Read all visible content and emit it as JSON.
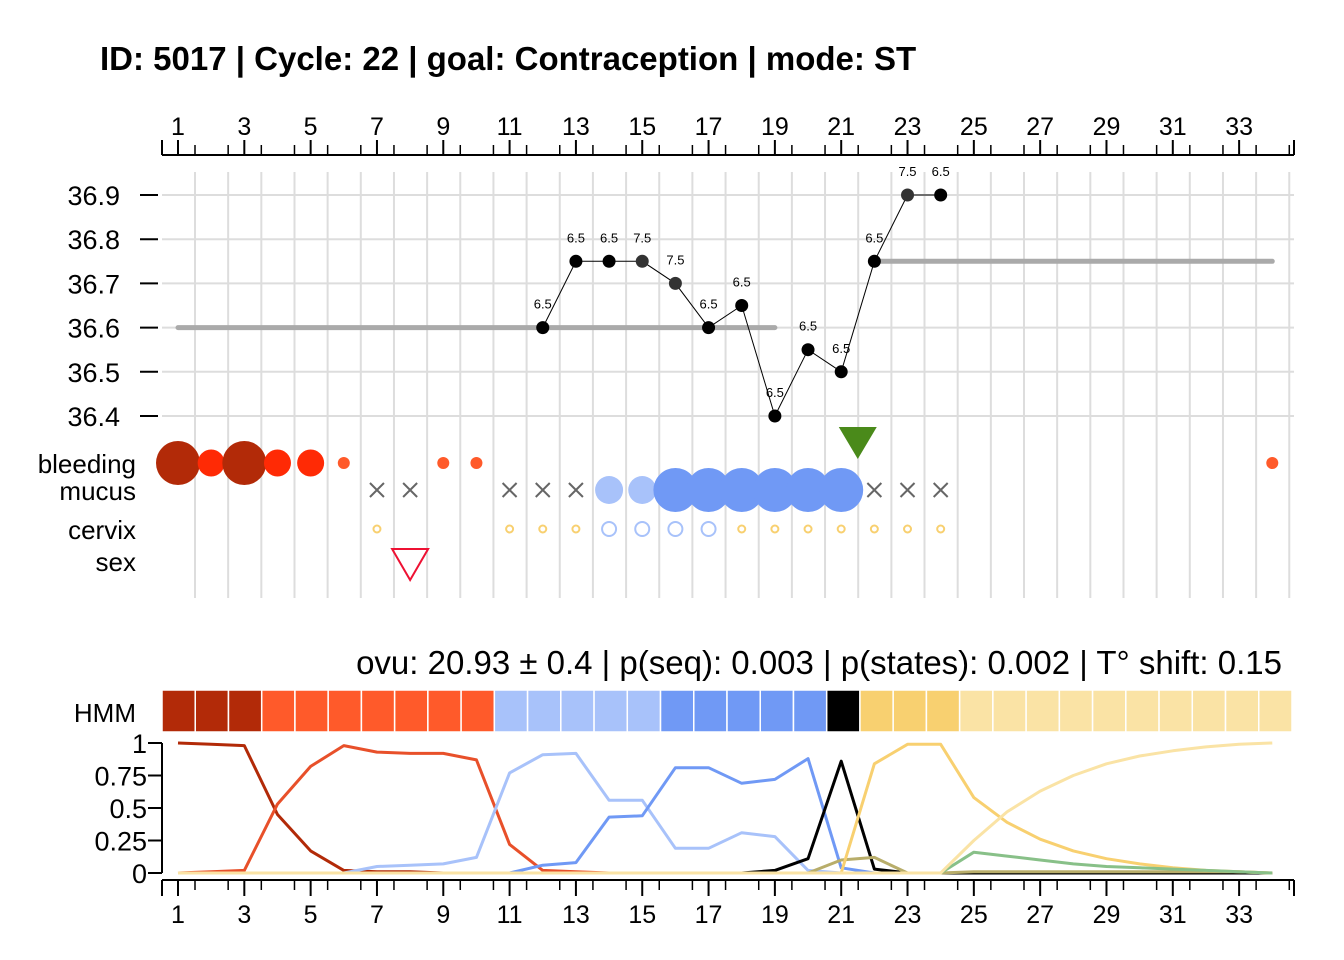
{
  "title": "ID: 5017 | Cycle: 22 | goal: Contraception  |  mode: ST",
  "stats_line": "ovu:  20.93  ±  0.4  | p(seq):  0.003  | p(states):  0.002  | T° shift:  0.15",
  "row_labels": {
    "bleeding": "bleeding",
    "mucus": "mucus",
    "cervix": "cervix",
    "sex": "sex",
    "hmm": "HMM"
  },
  "colors": {
    "bleeding_dark": "#B22A08",
    "bleeding_mid": "#FF2A05",
    "bleeding_light": "#FF5A2A",
    "mucus_light": "#A8C2FA",
    "mucus_dark": "#7099F5",
    "cervix_yellow": "#F8D070",
    "sex_red": "#EE1133",
    "ovulation_green": "#4A8A1A",
    "temp_line": "#000000",
    "reference_line": "#AAAAAA",
    "grid": "#DDDDDD"
  },
  "chart_data": [
    {
      "type": "line",
      "name": "temperature",
      "x_ticks": [
        "1",
        "3",
        "5",
        "7",
        "9",
        "11",
        "13",
        "15",
        "17",
        "19",
        "21",
        "23",
        "25",
        "27",
        "29",
        "31",
        "33"
      ],
      "y_ticks": [
        "36.4",
        "36.5",
        "36.6",
        "36.7",
        "36.8",
        "36.9"
      ],
      "xlim": [
        1,
        34
      ],
      "ylim": [
        36.4,
        36.9
      ],
      "x": [
        12,
        13,
        14,
        15,
        16,
        17,
        18,
        19,
        20,
        21,
        22,
        23,
        24
      ],
      "values": [
        36.6,
        36.75,
        36.75,
        36.75,
        36.7,
        36.6,
        36.65,
        36.4,
        36.55,
        36.5,
        36.75,
        36.9,
        36.9
      ],
      "labels": [
        "6.5",
        "6.5",
        "6.5",
        "7.5",
        "7.5",
        "6.5",
        "6.5",
        "6.5",
        "6.5",
        "6.5",
        "6.5",
        "7.5",
        "6.5"
      ],
      "reference_lines": [
        {
          "x_start": 1,
          "x_end": 19,
          "y": 36.6
        },
        {
          "x_start": 22,
          "x_end": 34,
          "y": 36.75
        }
      ]
    },
    {
      "type": "scatter",
      "name": "observations",
      "bleeding": [
        {
          "day": 1,
          "level": 3,
          "color": "#B22A08"
        },
        {
          "day": 2,
          "level": 2,
          "color": "#FF2A05"
        },
        {
          "day": 3,
          "level": 3,
          "color": "#B22A08"
        },
        {
          "day": 4,
          "level": 2,
          "color": "#FF2A05"
        },
        {
          "day": 5,
          "level": 2,
          "color": "#FF2A05"
        },
        {
          "day": 6,
          "level": 1,
          "color": "#FF5A2A"
        },
        {
          "day": 9,
          "level": 1,
          "color": "#FF5A2A"
        },
        {
          "day": 10,
          "level": 1,
          "color": "#FF5A2A"
        },
        {
          "day": 34,
          "level": 1,
          "color": "#FF5A2A"
        }
      ],
      "mucus_none": [
        7,
        8,
        11,
        12,
        13,
        22,
        23,
        24
      ],
      "mucus": [
        {
          "day": 14,
          "level": 1,
          "color": "#A8C2FA"
        },
        {
          "day": 15,
          "level": 1,
          "color": "#A8C2FA"
        },
        {
          "day": 16,
          "level": 3,
          "color": "#7099F5"
        },
        {
          "day": 17,
          "level": 3,
          "color": "#7099F5"
        },
        {
          "day": 18,
          "level": 3,
          "color": "#7099F5"
        },
        {
          "day": 19,
          "level": 3,
          "color": "#7099F5"
        },
        {
          "day": 20,
          "level": 3,
          "color": "#7099F5"
        },
        {
          "day": 21,
          "level": 3,
          "color": "#7099F5"
        }
      ],
      "cervix": [
        {
          "day": 7,
          "state": "low"
        },
        {
          "day": 11,
          "state": "low"
        },
        {
          "day": 12,
          "state": "low"
        },
        {
          "day": 13,
          "state": "low"
        },
        {
          "day": 14,
          "state": "open"
        },
        {
          "day": 15,
          "state": "open"
        },
        {
          "day": 16,
          "state": "open"
        },
        {
          "day": 17,
          "state": "open"
        },
        {
          "day": 18,
          "state": "low"
        },
        {
          "day": 19,
          "state": "low"
        },
        {
          "day": 20,
          "state": "low"
        },
        {
          "day": 21,
          "state": "low"
        },
        {
          "day": 22,
          "state": "low"
        },
        {
          "day": 23,
          "state": "low"
        },
        {
          "day": 24,
          "state": "low"
        }
      ],
      "sex": [
        8
      ],
      "ovulation_marker_day": 21.5
    },
    {
      "type": "heatmap",
      "name": "HMM states",
      "days": 34,
      "state_colors": [
        "#B22A08",
        "#B22A08",
        "#B22A08",
        "#FF5A2A",
        "#FF5A2A",
        "#FF5A2A",
        "#FF5A2A",
        "#FF5A2A",
        "#FF5A2A",
        "#FF5A2A",
        "#A8C2FA",
        "#A8C2FA",
        "#A8C2FA",
        "#A8C2FA",
        "#A8C2FA",
        "#7099F5",
        "#7099F5",
        "#7099F5",
        "#7099F5",
        "#7099F5",
        "#000000",
        "#F8D070",
        "#F8D070",
        "#F8D070",
        "#FAE3A5",
        "#FAE3A5",
        "#FAE3A5",
        "#FAE3A5",
        "#FAE3A5",
        "#FAE3A5",
        "#FAE3A5",
        "#FAE3A5",
        "#FAE3A5",
        "#FAE3A5"
      ]
    },
    {
      "type": "line",
      "name": "state probabilities",
      "x_ticks": [
        "1",
        "3",
        "5",
        "7",
        "9",
        "11",
        "13",
        "15",
        "17",
        "19",
        "21",
        "23",
        "25",
        "27",
        "29",
        "31",
        "33"
      ],
      "y_ticks": [
        "0",
        "0.25",
        "0.5",
        "0.75",
        "1"
      ],
      "xlim": [
        1,
        34
      ],
      "ylim": [
        0,
        1
      ],
      "series": [
        {
          "color": "#B22A08",
          "values": [
            1.0,
            0.99,
            0.98,
            0.45,
            0.17,
            0.02,
            0.01,
            0.01,
            0.0,
            0.0,
            0.0,
            0.0,
            0.0,
            0.0,
            0.0,
            0.0,
            0.0,
            0.0,
            0.0,
            0.0,
            0.0,
            0.0,
            0.0,
            0.0,
            0.0,
            0.0,
            0.0,
            0.0,
            0.0,
            0.0,
            0.0,
            0.0,
            0.0,
            0.0
          ]
        },
        {
          "color": "#E8502A",
          "values": [
            0.0,
            0.01,
            0.02,
            0.53,
            0.82,
            0.98,
            0.93,
            0.92,
            0.92,
            0.87,
            0.22,
            0.02,
            0.01,
            0.0,
            0.0,
            0.0,
            0.0,
            0.0,
            0.0,
            0.0,
            0.0,
            0.0,
            0.0,
            0.0,
            0.0,
            0.0,
            0.0,
            0.0,
            0.0,
            0.0,
            0.0,
            0.0,
            0.0,
            0.0
          ]
        },
        {
          "color": "#A8C2FA",
          "values": [
            0.0,
            0.0,
            0.0,
            0.0,
            0.0,
            0.0,
            0.05,
            0.06,
            0.07,
            0.12,
            0.77,
            0.91,
            0.92,
            0.56,
            0.56,
            0.19,
            0.19,
            0.31,
            0.28,
            0.02,
            0.0,
            0.0,
            0.0,
            0.0,
            0.0,
            0.0,
            0.0,
            0.0,
            0.0,
            0.0,
            0.0,
            0.0,
            0.0,
            0.0
          ]
        },
        {
          "color": "#7099F5",
          "values": [
            0.0,
            0.0,
            0.0,
            0.0,
            0.0,
            0.0,
            0.0,
            0.0,
            0.0,
            0.0,
            0.0,
            0.06,
            0.08,
            0.43,
            0.44,
            0.81,
            0.81,
            0.69,
            0.72,
            0.88,
            0.04,
            0.0,
            0.0,
            0.0,
            0.0,
            0.0,
            0.0,
            0.0,
            0.0,
            0.0,
            0.0,
            0.0,
            0.0,
            0.0
          ]
        },
        {
          "color": "#000000",
          "values": [
            0.0,
            0.0,
            0.0,
            0.0,
            0.0,
            0.0,
            0.0,
            0.0,
            0.0,
            0.0,
            0.0,
            0.0,
            0.0,
            0.0,
            0.0,
            0.0,
            0.0,
            0.0,
            0.02,
            0.11,
            0.86,
            0.03,
            0.0,
            0.0,
            0.0,
            0.0,
            0.0,
            0.0,
            0.0,
            0.0,
            0.0,
            0.0,
            0.0,
            0.0
          ]
        },
        {
          "color": "#B8AD6A",
          "values": [
            0.0,
            0.0,
            0.0,
            0.0,
            0.0,
            0.0,
            0.0,
            0.0,
            0.0,
            0.0,
            0.0,
            0.0,
            0.0,
            0.0,
            0.0,
            0.0,
            0.0,
            0.0,
            0.0,
            0.0,
            0.1,
            0.12,
            0.0,
            0.0,
            0.01,
            0.01,
            0.01,
            0.01,
            0.01,
            0.01,
            0.01,
            0.01,
            0.01,
            0.0
          ]
        },
        {
          "color": "#F8D070",
          "values": [
            0.0,
            0.0,
            0.0,
            0.0,
            0.0,
            0.0,
            0.0,
            0.0,
            0.0,
            0.0,
            0.0,
            0.0,
            0.0,
            0.0,
            0.0,
            0.0,
            0.0,
            0.0,
            0.0,
            0.0,
            0.0,
            0.84,
            0.99,
            0.99,
            0.58,
            0.39,
            0.26,
            0.17,
            0.11,
            0.07,
            0.04,
            0.02,
            0.01,
            0.0
          ]
        },
        {
          "color": "#88C088",
          "values": [
            0.0,
            0.0,
            0.0,
            0.0,
            0.0,
            0.0,
            0.0,
            0.0,
            0.0,
            0.0,
            0.0,
            0.0,
            0.0,
            0.0,
            0.0,
            0.0,
            0.0,
            0.0,
            0.0,
            0.0,
            0.0,
            0.0,
            0.0,
            0.0,
            0.16,
            0.13,
            0.1,
            0.07,
            0.05,
            0.04,
            0.03,
            0.02,
            0.01,
            0.0
          ]
        },
        {
          "color": "#FAE3A5",
          "values": [
            0.0,
            0.0,
            0.0,
            0.0,
            0.0,
            0.0,
            0.0,
            0.0,
            0.0,
            0.0,
            0.0,
            0.0,
            0.0,
            0.0,
            0.0,
            0.0,
            0.0,
            0.0,
            0.0,
            0.0,
            0.0,
            0.0,
            0.0,
            0.0,
            0.25,
            0.47,
            0.63,
            0.75,
            0.84,
            0.9,
            0.94,
            0.97,
            0.99,
            1.0
          ]
        }
      ]
    }
  ]
}
